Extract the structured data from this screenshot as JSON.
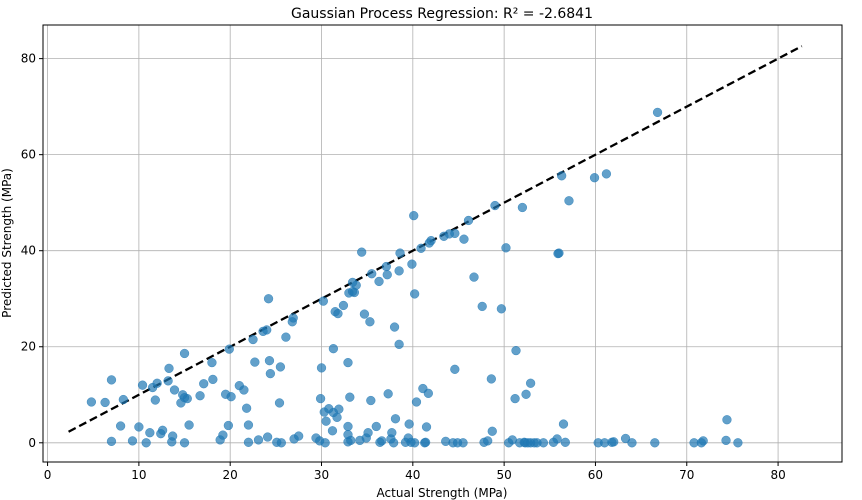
{
  "chart_data": {
    "type": "scatter",
    "title": "Gaussian Process Regression: R² = -2.6841",
    "xlabel": "Actual Strength (MPa)",
    "ylabel": "Predicted Strength (MPa)",
    "xlim": [
      -0.5,
      87
    ],
    "ylim": [
      -4,
      87
    ],
    "xticks": [
      0,
      10,
      20,
      30,
      40,
      50,
      60,
      70,
      80
    ],
    "yticks": [
      0,
      20,
      40,
      60,
      80
    ],
    "grid": true,
    "colors": {
      "points": "#1f77b4",
      "ideal_line": "#000000"
    },
    "ideal_line": {
      "style": "dashed",
      "x": [
        2.3,
        82.6
      ],
      "y": [
        2.3,
        82.6
      ]
    },
    "points": [
      [
        4.8,
        8.5
      ],
      [
        6.3,
        8.4
      ],
      [
        7.0,
        13.1
      ],
      [
        7.0,
        0.3
      ],
      [
        8.0,
        3.5
      ],
      [
        8.3,
        9.0
      ],
      [
        9.3,
        0.4
      ],
      [
        10.0,
        3.3
      ],
      [
        10.4,
        12.0
      ],
      [
        10.8,
        0.0
      ],
      [
        11.2,
        2.1
      ],
      [
        11.5,
        11.5
      ],
      [
        11.8,
        8.9
      ],
      [
        12.0,
        12.4
      ],
      [
        12.4,
        1.9
      ],
      [
        12.6,
        2.6
      ],
      [
        13.2,
        12.9
      ],
      [
        13.3,
        15.5
      ],
      [
        13.6,
        0.2
      ],
      [
        13.7,
        1.4
      ],
      [
        13.9,
        11.0
      ],
      [
        14.6,
        8.3
      ],
      [
        14.8,
        10.0
      ],
      [
        15.0,
        9.4
      ],
      [
        15.0,
        18.6
      ],
      [
        15.0,
        0.0
      ],
      [
        15.3,
        9.2
      ],
      [
        15.5,
        3.7
      ],
      [
        16.7,
        9.8
      ],
      [
        17.1,
        12.3
      ],
      [
        18.0,
        16.7
      ],
      [
        18.1,
        13.2
      ],
      [
        18.9,
        0.6
      ],
      [
        19.2,
        1.6
      ],
      [
        19.5,
        10.1
      ],
      [
        19.8,
        3.6
      ],
      [
        19.9,
        19.5
      ],
      [
        20.1,
        9.6
      ],
      [
        21.0,
        11.9
      ],
      [
        21.5,
        11.0
      ],
      [
        21.8,
        7.2
      ],
      [
        22.0,
        3.7
      ],
      [
        22.0,
        0.1
      ],
      [
        22.5,
        21.5
      ],
      [
        22.7,
        16.8
      ],
      [
        23.1,
        0.6
      ],
      [
        23.6,
        23.2
      ],
      [
        24.0,
        23.5
      ],
      [
        24.1,
        1.2
      ],
      [
        24.2,
        30.0
      ],
      [
        24.3,
        17.1
      ],
      [
        24.4,
        14.4
      ],
      [
        25.1,
        0.1
      ],
      [
        25.4,
        8.3
      ],
      [
        25.5,
        15.8
      ],
      [
        25.6,
        0.0
      ],
      [
        26.1,
        22.0
      ],
      [
        26.8,
        25.2
      ],
      [
        26.9,
        26.0
      ],
      [
        27.0,
        0.8
      ],
      [
        27.5,
        1.4
      ],
      [
        29.4,
        1.0
      ],
      [
        29.8,
        0.4
      ],
      [
        29.9,
        9.2
      ],
      [
        30.0,
        15.6
      ],
      [
        30.2,
        29.5
      ],
      [
        30.3,
        6.4
      ],
      [
        30.4,
        0.0
      ],
      [
        30.5,
        4.5
      ],
      [
        30.8,
        7.1
      ],
      [
        31.2,
        2.5
      ],
      [
        31.3,
        6.3
      ],
      [
        31.3,
        19.6
      ],
      [
        31.5,
        27.3
      ],
      [
        31.7,
        5.3
      ],
      [
        31.8,
        26.9
      ],
      [
        31.9,
        7.0
      ],
      [
        32.4,
        28.6
      ],
      [
        32.9,
        16.7
      ],
      [
        32.9,
        3.4
      ],
      [
        32.9,
        1.7
      ],
      [
        32.9,
        0.2
      ],
      [
        33.0,
        31.2
      ],
      [
        33.1,
        9.5
      ],
      [
        33.2,
        0.5
      ],
      [
        33.4,
        31.5
      ],
      [
        33.4,
        33.4
      ],
      [
        33.6,
        31.3
      ],
      [
        33.8,
        32.8
      ],
      [
        34.2,
        0.5
      ],
      [
        34.4,
        39.7
      ],
      [
        34.7,
        26.8
      ],
      [
        34.9,
        1.0
      ],
      [
        35.1,
        2.1
      ],
      [
        35.3,
        25.2
      ],
      [
        35.4,
        8.8
      ],
      [
        35.5,
        35.2
      ],
      [
        36.0,
        3.4
      ],
      [
        36.3,
        33.6
      ],
      [
        36.4,
        0.1
      ],
      [
        36.6,
        0.4
      ],
      [
        37.1,
        36.7
      ],
      [
        37.2,
        35.0
      ],
      [
        37.3,
        10.2
      ],
      [
        37.6,
        0.8
      ],
      [
        37.7,
        2.1
      ],
      [
        37.9,
        0.0
      ],
      [
        38.0,
        24.1
      ],
      [
        38.1,
        5.0
      ],
      [
        38.5,
        35.8
      ],
      [
        38.5,
        20.5
      ],
      [
        38.6,
        39.5
      ],
      [
        39.2,
        0.1
      ],
      [
        39.5,
        1.0
      ],
      [
        39.6,
        3.9
      ],
      [
        39.8,
        0.1
      ],
      [
        39.9,
        37.2
      ],
      [
        40.1,
        47.3
      ],
      [
        40.2,
        31.0
      ],
      [
        40.2,
        0.0
      ],
      [
        40.4,
        8.5
      ],
      [
        40.9,
        40.5
      ],
      [
        41.1,
        11.3
      ],
      [
        41.3,
        0.0
      ],
      [
        41.4,
        0.1
      ],
      [
        41.5,
        3.3
      ],
      [
        41.7,
        10.3
      ],
      [
        41.8,
        41.6
      ],
      [
        42.0,
        42.1
      ],
      [
        43.4,
        43.0
      ],
      [
        43.6,
        0.3
      ],
      [
        44.0,
        43.5
      ],
      [
        44.4,
        0.0
      ],
      [
        44.6,
        43.6
      ],
      [
        44.6,
        15.3
      ],
      [
        44.9,
        0.0
      ],
      [
        45.5,
        0.0
      ],
      [
        45.6,
        42.4
      ],
      [
        46.1,
        46.3
      ],
      [
        46.7,
        34.5
      ],
      [
        47.6,
        28.4
      ],
      [
        47.8,
        0.1
      ],
      [
        48.2,
        0.4
      ],
      [
        48.6,
        13.3
      ],
      [
        48.7,
        2.4
      ],
      [
        49.0,
        49.4
      ],
      [
        49.7,
        27.9
      ],
      [
        50.2,
        40.6
      ],
      [
        50.5,
        0.0
      ],
      [
        50.9,
        0.6
      ],
      [
        51.2,
        9.2
      ],
      [
        51.3,
        19.2
      ],
      [
        51.7,
        0.0
      ],
      [
        52.0,
        49.0
      ],
      [
        52.2,
        0.1
      ],
      [
        52.3,
        0.0
      ],
      [
        52.4,
        10.1
      ],
      [
        52.6,
        0.0
      ],
      [
        52.9,
        12.4
      ],
      [
        52.9,
        0.0
      ],
      [
        53.3,
        0.0
      ],
      [
        53.6,
        0.0
      ],
      [
        54.3,
        0.0
      ],
      [
        55.4,
        0.1
      ],
      [
        55.8,
        0.8
      ],
      [
        55.9,
        39.4
      ],
      [
        56.0,
        39.5
      ],
      [
        56.3,
        55.6
      ],
      [
        56.5,
        3.9
      ],
      [
        56.7,
        0.1
      ],
      [
        57.1,
        50.4
      ],
      [
        59.9,
        55.2
      ],
      [
        60.3,
        0.0
      ],
      [
        61.0,
        0.0
      ],
      [
        61.2,
        56.0
      ],
      [
        61.8,
        0.1
      ],
      [
        62.0,
        0.2
      ],
      [
        63.3,
        0.9
      ],
      [
        64.0,
        0.0
      ],
      [
        66.5,
        0.0
      ],
      [
        66.8,
        68.8
      ],
      [
        70.8,
        0.0
      ],
      [
        71.6,
        0.0
      ],
      [
        71.8,
        0.4
      ],
      [
        74.3,
        0.5
      ],
      [
        74.4,
        4.8
      ],
      [
        75.6,
        0.0
      ]
    ]
  }
}
